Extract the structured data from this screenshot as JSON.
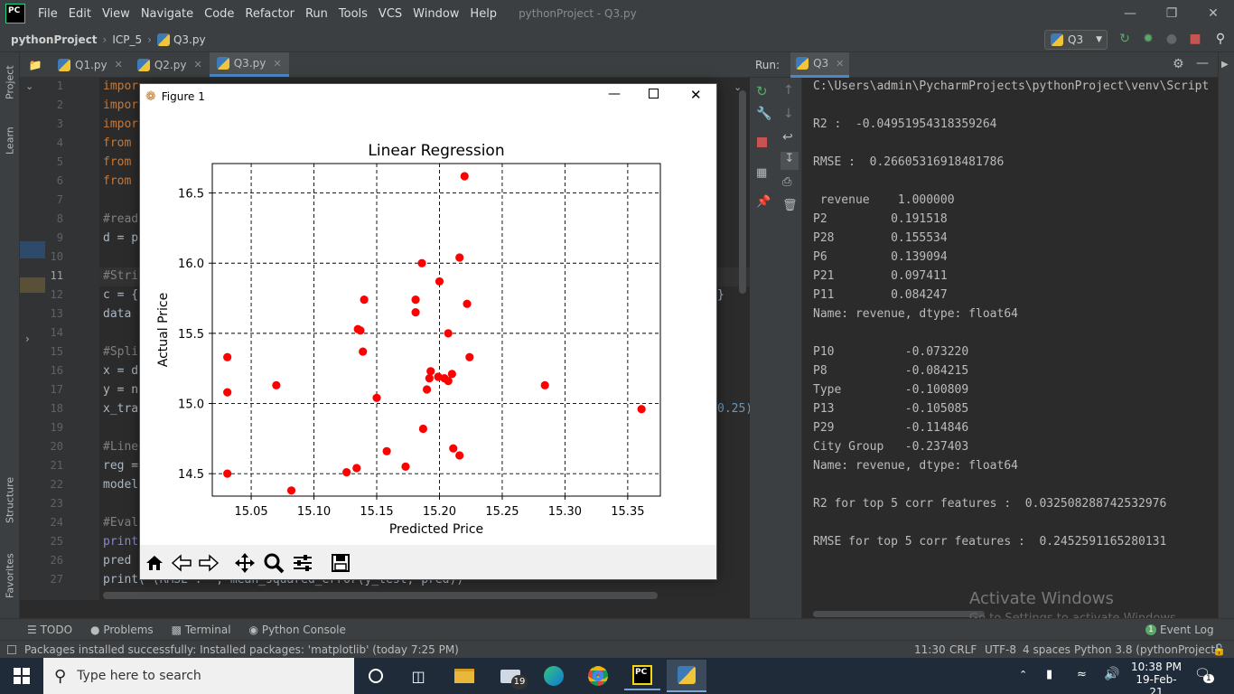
{
  "app": {
    "logo_text": "PC",
    "menu": [
      "File",
      "Edit",
      "View",
      "Navigate",
      "Code",
      "Refactor",
      "Run",
      "Tools",
      "VCS",
      "Window",
      "Help"
    ],
    "window_title": "pythonProject - Q3.py"
  },
  "nav": {
    "project": "pythonProject",
    "folder": "ICP_5",
    "file": "Q3.py",
    "run_config": "Q3"
  },
  "left_strip": {
    "project": "Project",
    "learn": "Learn",
    "structure": "Structure",
    "favorites": "Favorites"
  },
  "editor": {
    "tabs": [
      {
        "label": "Q1.py"
      },
      {
        "label": "Q2.py"
      },
      {
        "label": "Q3.py"
      }
    ],
    "line_numbers": [
      "1",
      "2",
      "3",
      "4",
      "5",
      "6",
      "7",
      "8",
      "9",
      "10",
      "11",
      "12",
      "13",
      "14",
      "15",
      "16",
      "17",
      "18",
      "19",
      "20",
      "21",
      "22",
      "23",
      "24",
      "25",
      "26",
      "27"
    ],
    "lines": [
      {
        "n": 1,
        "text": "impor"
      },
      {
        "n": 2,
        "text": "impor"
      },
      {
        "n": 3,
        "text": "impor"
      },
      {
        "n": 4,
        "text": "from "
      },
      {
        "n": 5,
        "text": "from "
      },
      {
        "n": 6,
        "text": "from "
      },
      {
        "n": 8,
        "text": "#read"
      },
      {
        "n": 9,
        "text": "d = p"
      },
      {
        "n": 11,
        "text": "#Stri"
      },
      {
        "n": 12,
        "text": "c = {"
      },
      {
        "n": 13,
        "text": "data "
      },
      {
        "n": 15,
        "text": "#Spli"
      },
      {
        "n": 16,
        "text": "x = d"
      },
      {
        "n": 17,
        "text": "y = n"
      },
      {
        "n": 18,
        "text": "x_tra"
      },
      {
        "n": 20,
        "text": "#Line"
      },
      {
        "n": 21,
        "text": "reg ="
      },
      {
        "n": 22,
        "text": "model"
      },
      {
        "n": 24,
        "text": "#Eval"
      },
      {
        "n": 25,
        "text": "print"
      },
      {
        "n": 26,
        "text": "pred "
      },
      {
        "n": 27,
        "text": "print(\"(RMSE : \", mean_squared_error(y_test, pred))"
      }
    ],
    "right_fragment_1": "}",
    "right_fragment_2": "0.25)"
  },
  "run": {
    "label": "Run:",
    "tab": "Q3",
    "console": [
      "C:\\Users\\admin\\PycharmProjects\\pythonProject\\venv\\Script",
      "",
      "R2 :  -0.04951954318359264",
      "",
      "RMSE :  0.26605316918481786",
      "",
      " revenue    1.000000",
      "P2         0.191518",
      "P28        0.155534",
      "P6         0.139094",
      "P21        0.097411",
      "P11        0.084247",
      "Name: revenue, dtype: float64",
      "",
      "P10          -0.073220",
      "P8           -0.084215",
      "Type         -0.100809",
      "P13          -0.105085",
      "P29          -0.114846",
      "City Group   -0.237403",
      "Name: revenue, dtype: float64",
      "",
      "R2 for top 5 corr features :  0.032508288742532976",
      "",
      "RMSE for top 5 corr features :  0.2452591165280131"
    ]
  },
  "watermark": {
    "line1": "Activate Windows",
    "line2": "Go to Settings to activate Windows."
  },
  "bottom_tabs": [
    "TODO",
    "Problems",
    "Terminal",
    "Python Console"
  ],
  "event_log": {
    "count": "1",
    "label": "Event Log"
  },
  "status": {
    "message": "Packages installed successfully: Installed packages: 'matplotlib' (today 7:25 PM)",
    "position": "11:30",
    "line_sep": "CRLF",
    "encoding": "UTF-8",
    "indent": "4 spaces",
    "interpreter": "Python 3.8 (pythonProject)"
  },
  "taskbar": {
    "search_placeholder": "Type here to search",
    "mail_badge": "19",
    "time": "10:38 PM",
    "date": "19-Feb-21",
    "notif_count": "1"
  },
  "figure": {
    "window_title": "Figure 1",
    "colors": {
      "marker": "#ff0000"
    }
  },
  "chart_data": {
    "type": "scatter",
    "title": "Linear Regression",
    "xlabel": "Predicted Price",
    "ylabel": "Actual Price",
    "xlim": [
      15.019,
      15.376
    ],
    "ylim": [
      14.34,
      16.71
    ],
    "xticks": [
      15.05,
      15.1,
      15.15,
      15.2,
      15.25,
      15.3,
      15.35
    ],
    "xtick_labels": [
      "15.05",
      "15.10",
      "15.15",
      "15.20",
      "15.25",
      "15.30",
      "15.35"
    ],
    "yticks": [
      14.5,
      15.0,
      15.5,
      16.0,
      16.5
    ],
    "ytick_labels": [
      "14.5",
      "15.0",
      "15.5",
      "16.0",
      "16.5"
    ],
    "grid": true,
    "grid_style": "dashed",
    "points": [
      {
        "x": 15.22,
        "y": 16.62
      },
      {
        "x": 15.186,
        "y": 16.0
      },
      {
        "x": 15.216,
        "y": 16.04
      },
      {
        "x": 15.2,
        "y": 15.87
      },
      {
        "x": 15.14,
        "y": 15.74
      },
      {
        "x": 15.181,
        "y": 15.74
      },
      {
        "x": 15.222,
        "y": 15.71
      },
      {
        "x": 15.181,
        "y": 15.65
      },
      {
        "x": 15.135,
        "y": 15.53
      },
      {
        "x": 15.137,
        "y": 15.52
      },
      {
        "x": 15.207,
        "y": 15.5
      },
      {
        "x": 15.139,
        "y": 15.37
      },
      {
        "x": 15.031,
        "y": 15.33
      },
      {
        "x": 15.224,
        "y": 15.33
      },
      {
        "x": 15.193,
        "y": 15.23
      },
      {
        "x": 15.199,
        "y": 15.19
      },
      {
        "x": 15.21,
        "y": 15.21
      },
      {
        "x": 15.192,
        "y": 15.18
      },
      {
        "x": 15.204,
        "y": 15.18
      },
      {
        "x": 15.207,
        "y": 15.16
      },
      {
        "x": 15.07,
        "y": 15.13
      },
      {
        "x": 15.284,
        "y": 15.13
      },
      {
        "x": 15.19,
        "y": 15.1
      },
      {
        "x": 15.031,
        "y": 15.08
      },
      {
        "x": 15.15,
        "y": 15.04
      },
      {
        "x": 15.361,
        "y": 14.96
      },
      {
        "x": 15.187,
        "y": 14.82
      },
      {
        "x": 15.211,
        "y": 14.68
      },
      {
        "x": 15.158,
        "y": 14.66
      },
      {
        "x": 15.216,
        "y": 14.63
      },
      {
        "x": 15.173,
        "y": 14.55
      },
      {
        "x": 15.134,
        "y": 14.54
      },
      {
        "x": 15.126,
        "y": 14.51
      },
      {
        "x": 15.031,
        "y": 14.5
      },
      {
        "x": 15.082,
        "y": 14.38
      }
    ]
  }
}
